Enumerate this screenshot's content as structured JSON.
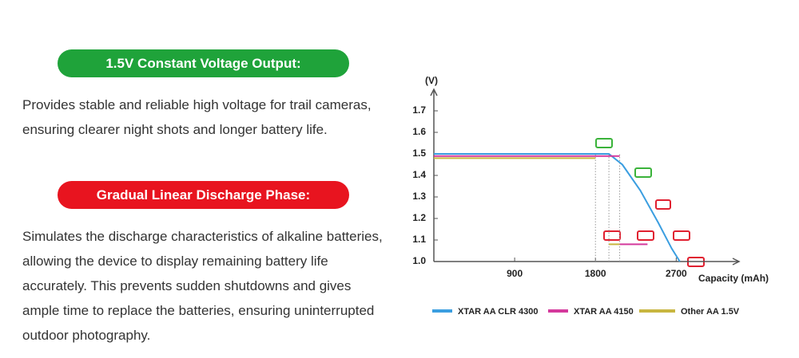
{
  "sections": [
    {
      "heading": "1.5V Constant Voltage Output:",
      "body": "Provides stable and reliable high voltage for trail cameras, ensuring clearer night shots and longer battery life."
    },
    {
      "heading": "Gradual Linear Discharge Phase:",
      "body": "Simulates the discharge characteristics of alkaline batteries, allowing the device to display remaining battery life accurately. This prevents sudden shutdowns and gives ample time to replace the batteries, ensuring uninterrupted outdoor photography."
    }
  ],
  "chart_data": {
    "type": "line",
    "y_label": "(V)",
    "x_label": "Capacity (mAh)",
    "xlim": [
      0,
      3400
    ],
    "ylim": [
      1.0,
      1.8
    ],
    "xticks": [
      900,
      1800,
      2700
    ],
    "yticks": [
      {
        "value": 1.0,
        "label": "1.0"
      },
      1.1,
      1.2,
      1.3,
      1.4,
      1.5,
      1.6,
      1.7
    ],
    "guides": [
      1800,
      1950,
      2070
    ],
    "series": [
      {
        "name": "XTAR AA CLR 4300",
        "color": "#3b9ee0",
        "x": [
          0,
          1950,
          2100,
          2300,
          2500,
          2650,
          2740
        ],
        "values": [
          1.5,
          1.5,
          1.45,
          1.33,
          1.18,
          1.06,
          1.0
        ]
      },
      {
        "name": "XTAR AA 4150",
        "color": "#d4399c",
        "x": [
          0,
          2070,
          null,
          2070,
          2380
        ],
        "values": [
          1.49,
          1.49,
          null,
          1.08,
          1.08
        ]
      },
      {
        "name": "Other AA 1.5V",
        "color": "#c8b640",
        "x": [
          0,
          1800,
          null,
          1950,
          2070
        ],
        "values": [
          1.48,
          1.48,
          null,
          1.08,
          1.08
        ]
      }
    ]
  }
}
